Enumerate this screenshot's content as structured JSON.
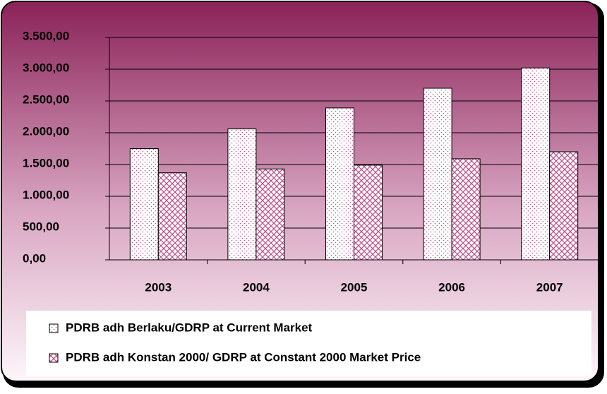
{
  "chart_data": {
    "type": "bar",
    "categories": [
      "2003",
      "2004",
      "2005",
      "2006",
      "2007"
    ],
    "series": [
      {
        "name": "PDRB adh Berlaku/GDRP at Current Market",
        "color": "#c0508a",
        "pattern": "dots",
        "values": [
          1750,
          2060,
          2390,
          2700,
          3020
        ]
      },
      {
        "name": "PDRB adh Konstan 2000/ GDRP at Constant 2000 Market Price",
        "color": "#c0508a",
        "pattern": "crosshatch",
        "values": [
          1370,
          1430,
          1490,
          1590,
          1700
        ]
      }
    ],
    "ylim": [
      0,
      3500
    ],
    "yticks": [
      {
        "value": 0,
        "label": "0,00"
      },
      {
        "value": 500,
        "label": "500,00"
      },
      {
        "value": 1000,
        "label": "1.000,00"
      },
      {
        "value": 1500,
        "label": "1.500,00"
      },
      {
        "value": 2000,
        "label": "2.000,00"
      },
      {
        "value": 2500,
        "label": "2.500,00"
      },
      {
        "value": 3000,
        "label": "3.000,00"
      },
      {
        "value": 3500,
        "label": "3.500,00"
      }
    ],
    "grid": true,
    "legend": "bottom"
  }
}
